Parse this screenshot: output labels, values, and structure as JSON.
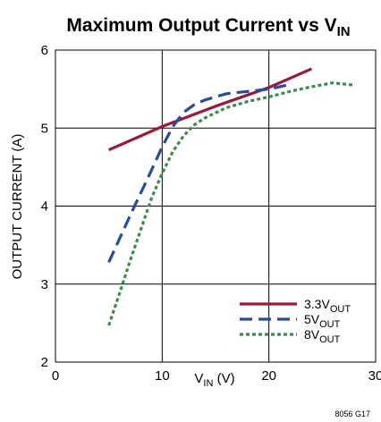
{
  "chart_data": {
    "type": "line",
    "title": {
      "main": "Maximum Output Current vs V",
      "sub": "IN"
    },
    "xlabel": {
      "main": "V",
      "sub": "IN",
      "unit": " (V)"
    },
    "ylabel": "OUTPUT CURRENT (A)",
    "xlim": [
      0,
      30
    ],
    "ylim": [
      2,
      6
    ],
    "xticks": [
      0,
      10,
      20,
      30
    ],
    "yticks": [
      2,
      3,
      4,
      5,
      6
    ],
    "grid": true,
    "legend_position": "bottom-right",
    "figure_code": "8056 G17",
    "series": [
      {
        "name": {
          "main": "3.3V",
          "sub": "OUT"
        },
        "color": "#9b1a3a",
        "style": "solid",
        "x": [
          5,
          10,
          15,
          20,
          24
        ],
        "y": [
          4.72,
          5.02,
          5.28,
          5.52,
          5.76
        ]
      },
      {
        "name": {
          "main": "5V",
          "sub": "OUT"
        },
        "color": "#2c4a9c",
        "style": "dashed",
        "x": [
          5,
          7,
          9,
          10,
          11,
          12,
          13,
          14,
          16,
          18,
          20,
          22
        ],
        "y": [
          3.28,
          3.88,
          4.46,
          4.76,
          5.02,
          5.2,
          5.3,
          5.36,
          5.44,
          5.47,
          5.5,
          5.56
        ]
      },
      {
        "name": {
          "main": "8V",
          "sub": "OUT"
        },
        "color": "#3e8a4e",
        "style": "dotted",
        "x": [
          5,
          6,
          7,
          8,
          9,
          10,
          11,
          12,
          13,
          14,
          16,
          18,
          20,
          22,
          24,
          26,
          28
        ],
        "y": [
          2.47,
          2.88,
          3.3,
          3.7,
          4.1,
          4.42,
          4.7,
          4.9,
          5.04,
          5.13,
          5.26,
          5.34,
          5.4,
          5.47,
          5.53,
          5.58,
          5.55
        ]
      }
    ]
  }
}
